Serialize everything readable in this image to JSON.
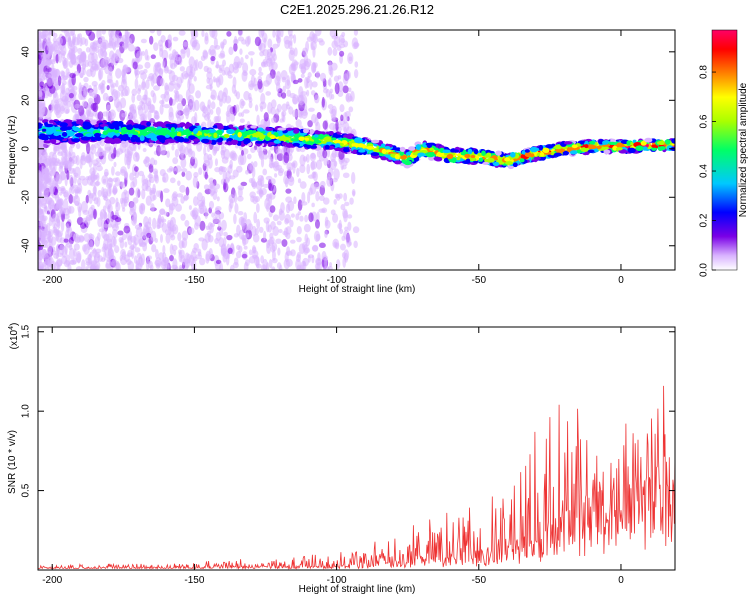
{
  "title": "C2E1.2025.296.21.26.R12",
  "chart_data": [
    {
      "type": "heatmap",
      "xlabel": "Height of straight line (km)",
      "ylabel": "Frequency (Hz)",
      "xlim": [
        -205,
        19
      ],
      "ylim": [
        -50,
        49
      ],
      "xticks": [
        -200,
        -150,
        -100,
        -50,
        0
      ],
      "yticks": [
        -40,
        -20,
        0,
        20,
        40
      ],
      "ridge": {
        "x": [
          -205,
          -180,
          -160,
          -140,
          -120,
          -100,
          -90,
          -80,
          -75,
          -70,
          -60,
          -50,
          -40,
          -30,
          -20,
          -10,
          0,
          10,
          19
        ],
        "y": [
          7,
          7,
          6.5,
          6,
          5,
          3,
          1,
          -2,
          -4,
          0,
          -3,
          -3,
          -5,
          -2,
          0,
          1,
          1,
          1.5,
          1.5
        ]
      },
      "colorbar": {
        "label": "Normalized spectral amplitude",
        "range": [
          0,
          0.97
        ],
        "ticks": [
          "0.0",
          "0.2",
          "0.4",
          "0.6",
          "0.8"
        ],
        "colors": [
          "#ffffff",
          "#d9b3ff",
          "#7a00e6",
          "#0000ff",
          "#00c8ff",
          "#00ff66",
          "#aaff00",
          "#ffff00",
          "#ff8000",
          "#ff0000",
          "#ff0066"
        ]
      }
    },
    {
      "type": "line",
      "xlabel": "Height of straight line (km)",
      "ylabel": "SNR (10 * v/v)",
      "scale_label": "(x10",
      "scale_exp": "4",
      "xlim": [
        -205,
        19
      ],
      "ylim": [
        0,
        1.53
      ],
      "xticks": [
        -200,
        -150,
        -100,
        -50,
        0
      ],
      "yticks": [
        "0.5",
        "1.0",
        "1.5"
      ],
      "color": "#ee3333",
      "envelope": {
        "x": [
          -205,
          -180,
          -160,
          -140,
          -125,
          -115,
          -110,
          -100,
          -90,
          -80,
          -70,
          -60,
          -50,
          -40,
          -35,
          -30,
          -25,
          -20,
          -15,
          -10,
          -5,
          0,
          5,
          10,
          15,
          19
        ],
        "base": [
          0.02,
          0.02,
          0.02,
          0.03,
          0.03,
          0.03,
          0.03,
          0.04,
          0.05,
          0.08,
          0.1,
          0.12,
          0.15,
          0.2,
          0.25,
          0.3,
          0.35,
          0.45,
          0.5,
          0.6,
          0.65,
          0.7,
          0.75,
          0.8,
          0.85,
          0.9
        ],
        "amp": [
          0.02,
          0.03,
          0.03,
          0.04,
          0.05,
          0.06,
          0.08,
          0.08,
          0.12,
          0.18,
          0.22,
          0.3,
          0.35,
          0.45,
          0.55,
          0.7,
          0.8,
          0.8,
          0.75,
          0.7,
          0.6,
          0.55,
          0.5,
          0.55,
          0.6,
          0.3
        ]
      }
    }
  ]
}
